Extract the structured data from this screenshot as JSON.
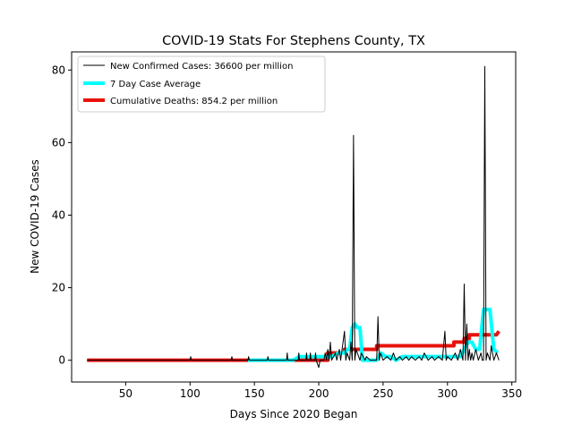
{
  "chart_data": {
    "type": "line",
    "title": "COVID-19 Stats For Stephens County, TX",
    "xlabel": "Days Since 2020 Began",
    "ylabel": "New COVID-19 Cases",
    "xlim": [
      8,
      353
    ],
    "ylim": [
      -6,
      85
    ],
    "xticks": [
      50,
      100,
      150,
      200,
      250,
      300,
      350
    ],
    "yticks": [
      0,
      20,
      40,
      60,
      80
    ],
    "grid": false,
    "legend_position": "top-left",
    "series": [
      {
        "name": "New Confirmed Cases: 36600 per million",
        "color": "#000000",
        "line_width": 1,
        "x": [
          20,
          100,
          100.5,
          101,
          132,
          132.5,
          133,
          145,
          145.5,
          146,
          160,
          160.5,
          161,
          175,
          175.5,
          176,
          184,
          184.5,
          185,
          190,
          190.5,
          191,
          193,
          193.5,
          194,
          197,
          197.5,
          198,
          200,
          201,
          204,
          205,
          206,
          207,
          208,
          209,
          210,
          213,
          214,
          216,
          217,
          220,
          221,
          222,
          224,
          225,
          226,
          227,
          228,
          229,
          232,
          233,
          236,
          237,
          240,
          245,
          246,
          247,
          248,
          250,
          253,
          256,
          258,
          260,
          263,
          265,
          268,
          270,
          272,
          275,
          278,
          280,
          282,
          285,
          288,
          290,
          293,
          296,
          298,
          299,
          300,
          303,
          306,
          308,
          310,
          312,
          313,
          314,
          315,
          316,
          317,
          318,
          319,
          320,
          322,
          324,
          326,
          327,
          328,
          329,
          330,
          331,
          333,
          334,
          336,
          338,
          340
        ],
        "y": [
          0,
          0,
          1,
          0,
          0,
          1,
          0,
          0,
          1,
          0,
          0,
          1,
          0,
          0,
          2,
          0,
          0,
          2,
          0,
          0,
          2,
          0,
          0,
          2,
          0,
          0,
          2,
          0,
          -2,
          0,
          0,
          2,
          0,
          3,
          0,
          5,
          0,
          2,
          0,
          3,
          0,
          8,
          0,
          2,
          0,
          5,
          0,
          62,
          0,
          3,
          0,
          2,
          0,
          1,
          0,
          0,
          12,
          0,
          2,
          0,
          1,
          0,
          2,
          0,
          1,
          0,
          1,
          0,
          1,
          0,
          1,
          0,
          2,
          0,
          1,
          0,
          1,
          0,
          8,
          0,
          1,
          0,
          2,
          0,
          3,
          0,
          21,
          0,
          10,
          0,
          3,
          0,
          2,
          0,
          3,
          0,
          2,
          0,
          0,
          81,
          0,
          2,
          0,
          4,
          0,
          2,
          0
        ]
      },
      {
        "name": "7 Day Case Average",
        "color": "#00ffff",
        "line_width": 4,
        "x": [
          145,
          150,
          160,
          170,
          175,
          180,
          185,
          190,
          195,
          200,
          205,
          210,
          215,
          220,
          222,
          224,
          226,
          228,
          230,
          232,
          234,
          240,
          245,
          248,
          252,
          256,
          260,
          265,
          270,
          275,
          280,
          285,
          290,
          295,
          300,
          305,
          310,
          313,
          316,
          319,
          322,
          325,
          328,
          330,
          333,
          336,
          339
        ],
        "y": [
          0,
          0,
          0,
          0,
          0,
          0,
          1,
          1,
          1,
          1,
          1,
          1,
          2,
          2,
          3,
          3,
          9,
          10,
          9,
          9,
          0,
          0,
          0,
          2,
          1,
          1,
          0,
          1,
          1,
          1,
          1,
          1,
          1,
          1,
          1,
          1,
          1,
          3,
          5,
          5,
          3,
          3,
          14,
          14,
          14,
          3,
          2
        ]
      },
      {
        "name": "Cumulative Deaths: 854.2 per million",
        "color": "#e8120c",
        "line_width": 4,
        "x": [
          20,
          207,
          207,
          220,
          220,
          245,
          245,
          305,
          305,
          313,
          313,
          317,
          317,
          338,
          340
        ],
        "y": [
          0,
          0,
          2,
          2,
          3,
          3,
          4,
          4,
          5,
          5,
          6,
          6,
          7,
          7,
          8
        ]
      }
    ]
  }
}
